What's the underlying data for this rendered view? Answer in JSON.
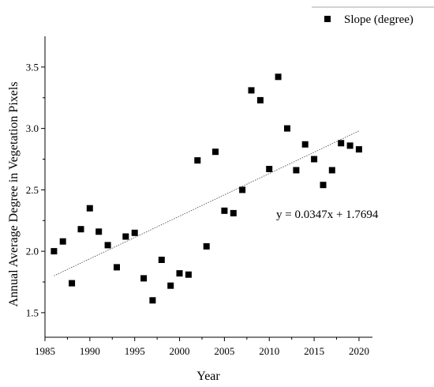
{
  "chart_data": {
    "type": "scatter",
    "title": "",
    "xlabel": "Year",
    "ylabel": "Annual Average Degree in Vegetation Pixels",
    "xlim": [
      1985,
      2021.5
    ],
    "ylim": [
      1.3,
      3.75
    ],
    "xticks": [
      1985,
      1990,
      1995,
      2000,
      2005,
      2010,
      2015,
      2020
    ],
    "yticks": [
      1.5,
      2.0,
      2.5,
      3.0,
      3.5
    ],
    "ytick_labels": [
      "1.5",
      "2.0",
      "2.5",
      "3.0",
      "3.5"
    ],
    "grid": false,
    "legend_position": "top-right",
    "series": [
      {
        "name": "Slope (degree)",
        "marker": "square",
        "color": "#000000",
        "x": [
          1986,
          1987,
          1988,
          1989,
          1990,
          1991,
          1992,
          1993,
          1994,
          1995,
          1996,
          1997,
          1998,
          1999,
          2000,
          2001,
          2002,
          2003,
          2004,
          2005,
          2006,
          2007,
          2008,
          2009,
          2010,
          2011,
          2012,
          2013,
          2014,
          2015,
          2016,
          2017,
          2018,
          2019,
          2020
        ],
        "y": [
          2.0,
          2.08,
          1.74,
          2.18,
          2.35,
          2.16,
          2.05,
          1.87,
          2.12,
          2.15,
          1.78,
          1.6,
          1.93,
          1.72,
          1.82,
          1.81,
          2.74,
          2.04,
          2.81,
          2.33,
          2.31,
          2.5,
          3.31,
          3.23,
          2.67,
          3.42,
          3.0,
          2.66,
          2.87,
          2.75,
          2.54,
          2.66,
          2.88,
          2.86,
          2.83
        ]
      }
    ],
    "trendline": {
      "slope": 0.0347,
      "intercept": 1.7694,
      "x_range": [
        1986,
        2020
      ],
      "y_range": [
        1.8,
        2.98
      ],
      "equation": "y = 0.0347x + 1.7694"
    }
  }
}
